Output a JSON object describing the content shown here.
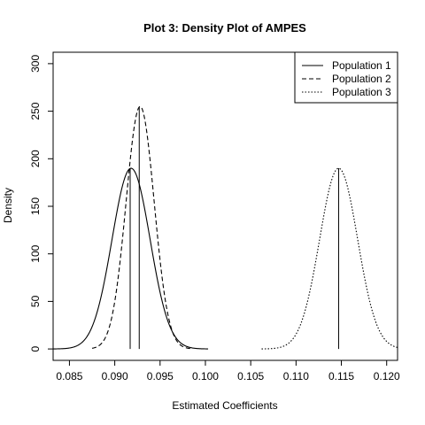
{
  "chart_data": {
    "type": "line",
    "title": "Plot 3: Density Plot of AMPES",
    "xlabel": "Estimated Coefficients",
    "ylabel": "Density",
    "xlim": [
      0.0832,
      0.1212
    ],
    "ylim": [
      -12,
      312
    ],
    "x_ticks": [
      0.085,
      0.09,
      0.095,
      0.1,
      0.105,
      0.11,
      0.115,
      0.12
    ],
    "x_tick_labels": [
      "0.085",
      "0.090",
      "0.095",
      "0.100",
      "0.105",
      "0.110",
      "0.115",
      "0.120"
    ],
    "y_ticks": [
      0,
      50,
      100,
      150,
      200,
      250,
      300
    ],
    "y_tick_labels": [
      "0",
      "50",
      "100",
      "150",
      "200",
      "250",
      "300"
    ],
    "legend_position": "top-right",
    "grid": false,
    "series": [
      {
        "name": "Population 1",
        "style": "solid",
        "mean": 0.0918,
        "peak": 190,
        "sd": 0.0021,
        "x_range": [
          0.0832,
          0.1003
        ],
        "mean_line": 0.0917
      },
      {
        "name": "Population 2",
        "style": "dashed",
        "mean": 0.0928,
        "peak": 255,
        "sd": 0.00155,
        "x_range": [
          0.0875,
          0.0985
        ],
        "mean_line": 0.0927
      },
      {
        "name": "Population 3",
        "style": "dotted",
        "mean": 0.1147,
        "peak": 190,
        "sd": 0.0021,
        "x_range": [
          0.1062,
          0.1212
        ],
        "mean_line": 0.1147
      }
    ]
  }
}
